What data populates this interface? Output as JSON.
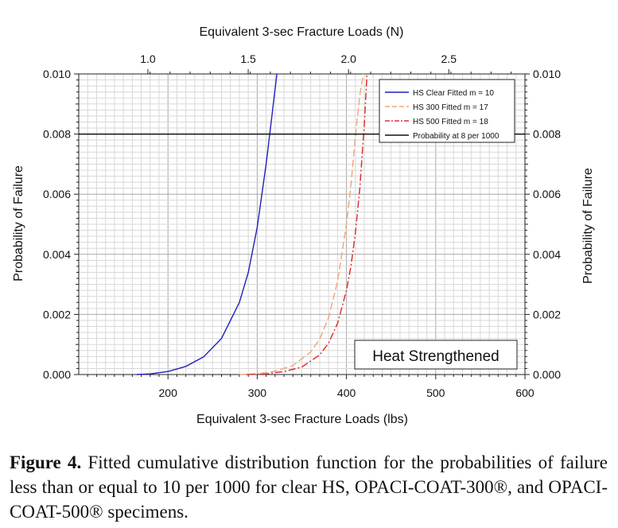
{
  "chart_data": {
    "type": "line",
    "title": "Heat Strengthened",
    "xlabel": "Equivalent 3-sec Fracture Loads (lbs)",
    "x2label": "Equivalent 3-sec Fracture Loads (N)",
    "ylabel": "Probability of Failure",
    "y2label": "Probability of Failure",
    "xlim": [
      100,
      600
    ],
    "ylim": [
      0,
      0.01
    ],
    "x_ticks": [
      "200",
      "300",
      "400",
      "500",
      "600"
    ],
    "x_tick_values": [
      200,
      300,
      400,
      500,
      600
    ],
    "x2_ticks": [
      "1.0",
      "1.5",
      "2.0",
      "2.5"
    ],
    "x2_tick_values_lbs": [
      177.5,
      289.9,
      402.3,
      514.7
    ],
    "y_ticks": [
      "0.000",
      "0.002",
      "0.004",
      "0.006",
      "0.008",
      "0.010"
    ],
    "y_tick_values": [
      0,
      0.002,
      0.004,
      0.006,
      0.008,
      0.01
    ],
    "grid": true,
    "legend_position": "top-right",
    "series": [
      {
        "name": "HS Clear Fitted m = 10",
        "color": "#1f1fbf",
        "dash": "solid",
        "x": [
          165,
          180,
          200,
          220,
          240,
          260,
          280,
          290,
          300,
          310,
          316,
          322
        ],
        "y": [
          0.0,
          2e-05,
          0.0001,
          0.00027,
          0.00059,
          0.0012,
          0.0024,
          0.0034,
          0.0049,
          0.007,
          0.0085,
          0.01
        ]
      },
      {
        "name": "HS 300 Fitted m = 17",
        "color": "#f0a880",
        "dash": "long-dash",
        "x": [
          280,
          300,
          320,
          340,
          360,
          370,
          380,
          390,
          400,
          405,
          410,
          415,
          419
        ],
        "y": [
          0.0,
          2e-05,
          0.00011,
          0.0003,
          0.00075,
          0.00118,
          0.0019,
          0.0031,
          0.005,
          0.0063,
          0.0079,
          0.0093,
          0.01
        ]
      },
      {
        "name": "HS 500 Fitted m = 18",
        "color": "#e03030",
        "dash": "dash-dot",
        "x": [
          290,
          310,
          330,
          350,
          370,
          380,
          390,
          400,
          405,
          410,
          415,
          420,
          423
        ],
        "y": [
          0.0,
          2e-05,
          0.0001,
          0.00025,
          0.00065,
          0.00105,
          0.0017,
          0.0028,
          0.0036,
          0.0047,
          0.0062,
          0.0083,
          0.01
        ]
      },
      {
        "name": "Probability at 8 per 1000",
        "color": "#111111",
        "dash": "solid",
        "x": [
          100,
          600
        ],
        "y": [
          0.008,
          0.008
        ]
      }
    ]
  },
  "caption": {
    "label": "Figure 4.",
    "text": " Fitted cumulative distribution function for the probabilities of failure less than or equal to 10 per 1000 for clear HS, OPACI-COAT-300®, and OPACI-COAT-500® specimens."
  }
}
